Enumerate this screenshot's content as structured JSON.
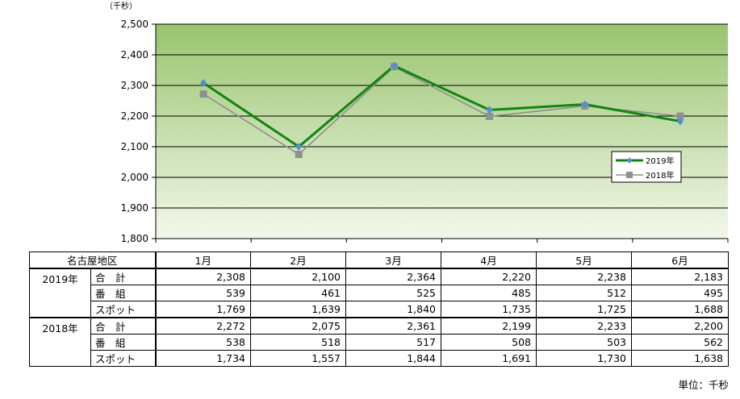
{
  "unit_top": "（千秒）",
  "unit_bottom": "単位：千秒",
  "chart_data": {
    "type": "line",
    "categories": [
      "1月",
      "2月",
      "3月",
      "4月",
      "5月",
      "6月"
    ],
    "series": [
      {
        "name": "2019年",
        "values": [
          2308,
          2100,
          2364,
          2220,
          2238,
          2183
        ],
        "color": "#118511",
        "marker": "diamond",
        "marker_color": "#4f8fd6"
      },
      {
        "name": "2018年",
        "values": [
          2272,
          2075,
          2361,
          2199,
          2233,
          2200
        ],
        "color": "#8e8e8e",
        "marker": "square",
        "marker_color": "#909090"
      }
    ],
    "ylim": [
      1800,
      2500
    ],
    "yticks": [
      "1,800",
      "1,900",
      "2,000",
      "2,100",
      "2,200",
      "2,300",
      "2,400",
      "2,500"
    ],
    "grid": true,
    "legend_position": "right",
    "background_gradient": [
      "#98c46e",
      "#f3f8ea"
    ]
  },
  "table": {
    "corner": "名古屋地区",
    "months": [
      "1月",
      "2月",
      "3月",
      "4月",
      "5月",
      "6月"
    ],
    "groups": [
      {
        "year": "2019年",
        "rows": [
          {
            "label": "合　計",
            "values": [
              "2,308",
              "2,100",
              "2,364",
              "2,220",
              "2,238",
              "2,183"
            ]
          },
          {
            "label": "番　組",
            "values": [
              "539",
              "461",
              "525",
              "485",
              "512",
              "495"
            ]
          },
          {
            "label": "スポット",
            "values": [
              "1,769",
              "1,639",
              "1,840",
              "1,735",
              "1,725",
              "1,688"
            ]
          }
        ]
      },
      {
        "year": "2018年",
        "rows": [
          {
            "label": "合　計",
            "values": [
              "2,272",
              "2,075",
              "2,361",
              "2,199",
              "2,233",
              "2,200"
            ]
          },
          {
            "label": "番　組",
            "values": [
              "538",
              "518",
              "517",
              "508",
              "503",
              "562"
            ]
          },
          {
            "label": "スポット",
            "values": [
              "1,734",
              "1,557",
              "1,844",
              "1,691",
              "1,730",
              "1,638"
            ]
          }
        ]
      }
    ]
  }
}
